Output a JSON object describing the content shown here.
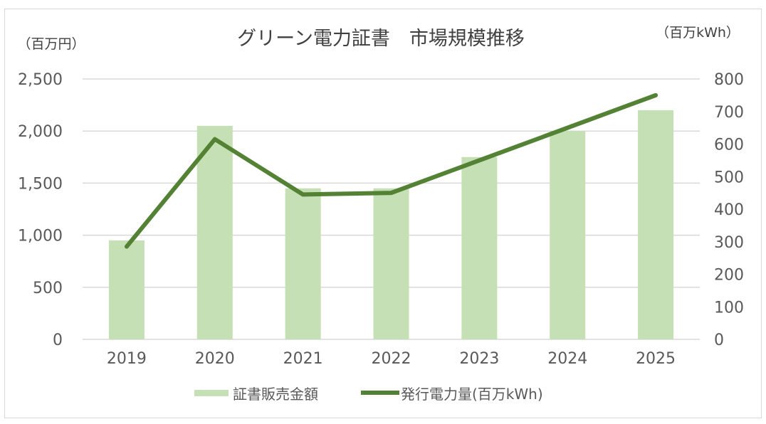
{
  "chart_data": {
    "type": "bar",
    "combo": "bar+line",
    "title": "グリーン電力証書　市場規模推移",
    "xlabel": "",
    "ylabel": "（百万円）",
    "y2label": "（百万kWh）",
    "categories": [
      "2019",
      "2020",
      "2021",
      "2022",
      "2023",
      "2024",
      "2025"
    ],
    "ylim": [
      0,
      2500
    ],
    "yticks": [
      0,
      500,
      1000,
      1500,
      2000,
      2500
    ],
    "ytick_labels": [
      "0",
      "500",
      "1,000",
      "1,500",
      "2,000",
      "2,500"
    ],
    "y2lim": [
      0,
      800
    ],
    "y2ticks": [
      0,
      100,
      200,
      300,
      400,
      500,
      600,
      700,
      800
    ],
    "y2tick_labels": [
      "0",
      "100",
      "200",
      "300",
      "400",
      "500",
      "600",
      "700",
      "800"
    ],
    "grid": true,
    "legend": "bottom",
    "series": [
      {
        "name": "証書販売金額",
        "type": "bar",
        "axis": "left",
        "color": "#c5e0b4",
        "values": [
          950,
          2050,
          1450,
          1450,
          1750,
          2000,
          2200
        ]
      },
      {
        "name": "発行電力量(百万kWh)",
        "type": "line",
        "axis": "right",
        "color": "#548235",
        "values": [
          285,
          615,
          445,
          450,
          550,
          650,
          750
        ]
      }
    ]
  }
}
